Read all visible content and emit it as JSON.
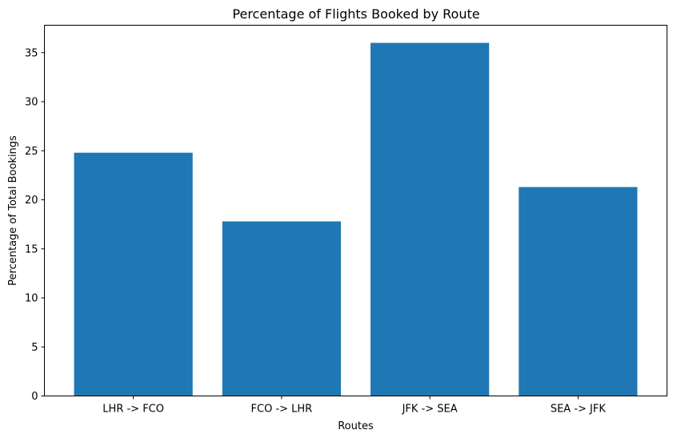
{
  "chart_data": {
    "type": "bar",
    "title": "Percentage of Flights Booked by Route",
    "xlabel": "Routes",
    "ylabel": "Percentage of Total Bookings",
    "categories": [
      "LHR -> FCO",
      "FCO -> LHR",
      "JFK -> SEA",
      "SEA -> JFK"
    ],
    "values": [
      24.8,
      17.8,
      36.0,
      21.3
    ],
    "ylim": [
      0,
      37.8
    ],
    "yticks": [
      0,
      5,
      10,
      15,
      20,
      25,
      30,
      35
    ],
    "grid": false,
    "legend": false,
    "colors": {
      "bar": "#1f77b4",
      "axis": "#000000"
    }
  }
}
